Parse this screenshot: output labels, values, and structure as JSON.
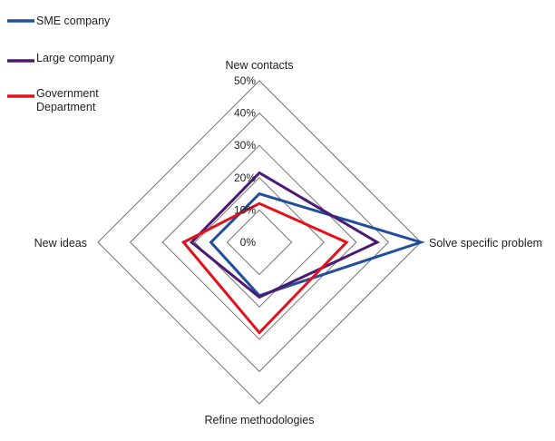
{
  "chart_data": {
    "type": "radar",
    "axes": [
      "New contacts",
      "Solve specific problem",
      "Refine methodologies",
      "New ideas"
    ],
    "ticks": [
      "0%",
      "10%",
      "20%",
      "30%",
      "40%",
      "50%"
    ],
    "rmax": 50,
    "grid": true,
    "legend_position": "top-left",
    "series": [
      {
        "name": "SME company",
        "color": "#1f4e9c",
        "values": [
          15,
          50,
          16.5,
          15
        ]
      },
      {
        "name": "Large company",
        "color": "#4b1a73",
        "values": [
          21.5,
          36.5,
          17,
          21
        ]
      },
      {
        "name": "Government Department",
        "legend_lines": [
          "Government",
          "Department"
        ],
        "color": "#e3111b",
        "values": [
          12,
          27,
          28,
          23.5
        ]
      }
    ]
  }
}
